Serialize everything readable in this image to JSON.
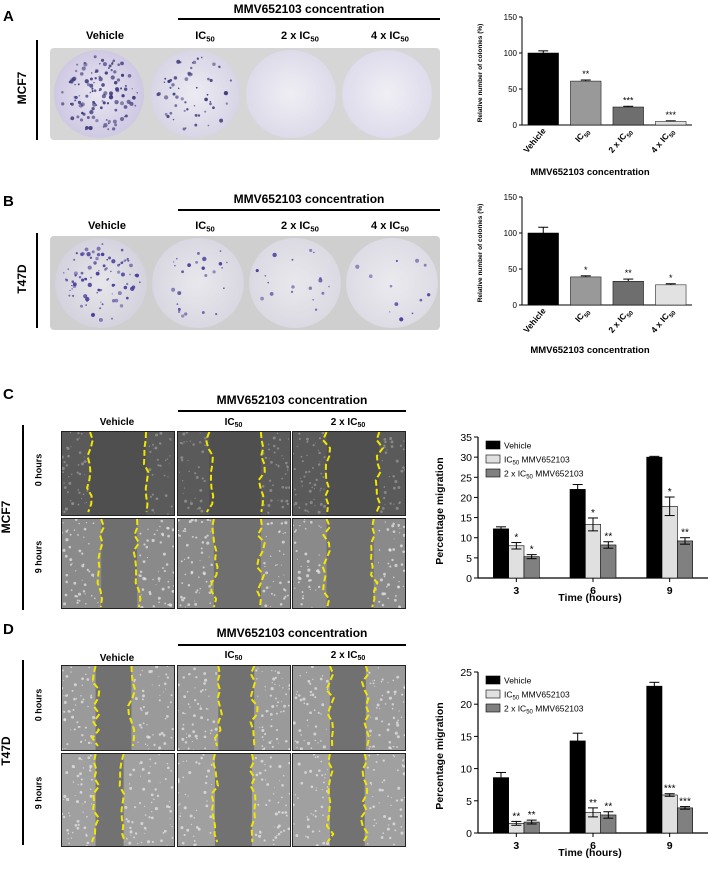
{
  "figure": {
    "concentration_header": "MMV652103  concentration",
    "panels": [
      {
        "letter": "A",
        "cell_line": "MCF7",
        "columns": [
          {
            "main": "Vehicle",
            "sub": ""
          },
          {
            "main": "IC",
            "sub": "50"
          },
          {
            "main": "2 x IC",
            "sub": "50"
          },
          {
            "main": "4 x IC",
            "sub": "50"
          }
        ]
      },
      {
        "letter": "B",
        "cell_line": "T47D",
        "columns": [
          {
            "main": "Vehicle",
            "sub": ""
          },
          {
            "main": "IC",
            "sub": "50"
          },
          {
            "main": "2 x IC",
            "sub": "50"
          },
          {
            "main": "4 x IC",
            "sub": "50"
          }
        ]
      },
      {
        "letter": "C",
        "cell_line": "MCF7",
        "columns": [
          {
            "main": "Vehicle",
            "sub": ""
          },
          {
            "main": "IC",
            "sub": "50"
          },
          {
            "main": "2 x IC",
            "sub": "50"
          }
        ],
        "rows": [
          "0 hours",
          "9 hours"
        ]
      },
      {
        "letter": "D",
        "cell_line": "T47D",
        "columns": [
          {
            "main": "Vehicle",
            "sub": ""
          },
          {
            "main": "IC",
            "sub": "50"
          },
          {
            "main": "2 x IC",
            "sub": "50"
          }
        ],
        "rows": [
          "0 hours",
          "9 hours"
        ]
      }
    ]
  },
  "chart_data": [
    {
      "type": "bar",
      "panel": "A",
      "categories": [
        "Vehicle",
        "IC50",
        "2 x IC50",
        "4 x IC50"
      ],
      "category_labels": [
        {
          "main": "Vehicle",
          "sub": ""
        },
        {
          "main": "IC",
          "sub": "50"
        },
        {
          "main": "2 x IC",
          "sub": "50"
        },
        {
          "main": "4 x IC",
          "sub": "50"
        }
      ],
      "values": [
        100,
        61,
        25,
        5
      ],
      "errors": [
        3,
        1.5,
        1,
        0.8
      ],
      "significance": [
        "",
        "**",
        "***",
        "***"
      ],
      "colors": [
        "#000000",
        "#999999",
        "#6e6e6e",
        "#e2e2e2"
      ],
      "ylabel": "Relative number of colonies (%)",
      "xlabel": "MMV652103 concentration",
      "ylim": [
        0,
        150
      ],
      "yticks": [
        0,
        50,
        100,
        150
      ]
    },
    {
      "type": "bar",
      "panel": "B",
      "categories": [
        "Vehicle",
        "IC50",
        "2 x IC50",
        "4 x IC50"
      ],
      "category_labels": [
        {
          "main": "Vehicle",
          "sub": ""
        },
        {
          "main": "IC",
          "sub": "50"
        },
        {
          "main": "2 x IC",
          "sub": "50"
        },
        {
          "main": "4 x IC",
          "sub": "50"
        }
      ],
      "values": [
        100,
        39,
        33,
        28
      ],
      "errors": [
        8,
        1.5,
        3,
        1.5
      ],
      "significance": [
        "",
        "*",
        "**",
        "*"
      ],
      "colors": [
        "#000000",
        "#999999",
        "#6e6e6e",
        "#e2e2e2"
      ],
      "ylabel": "Relative number of colonies (%)",
      "xlabel": "MMV652103 concentration",
      "ylim": [
        0,
        150
      ],
      "yticks": [
        0,
        50,
        100,
        150
      ]
    },
    {
      "type": "bar",
      "panel": "C",
      "categories": [
        "3",
        "6",
        "9"
      ],
      "series": [
        {
          "name": "Vehicle",
          "name_main": "Vehicle",
          "name_sub": "",
          "name_rest": "",
          "color": "#000000",
          "values": [
            12.2,
            22,
            30
          ],
          "errors": [
            0.5,
            1.2,
            0.2
          ],
          "significance": [
            "",
            "",
            ""
          ]
        },
        {
          "name": "IC50 MMV652103",
          "name_main": "IC",
          "name_sub": "50",
          "name_rest": " MMV652103",
          "color": "#e0e0e0",
          "values": [
            8,
            13.3,
            17.8
          ],
          "errors": [
            0.8,
            1.6,
            2.3
          ],
          "significance": [
            "*",
            "*",
            "*"
          ]
        },
        {
          "name": "2 x IC50 MMV652103",
          "name_main": "2 x IC",
          "name_sub": "50",
          "name_rest": " MMV652103",
          "color": "#808080",
          "values": [
            5.3,
            8.2,
            9.2
          ],
          "errors": [
            0.5,
            0.8,
            0.8
          ],
          "significance": [
            "*",
            "**",
            "**"
          ]
        }
      ],
      "ylabel": "Percentage migration",
      "xlabel": "Time (hours)",
      "ylim": [
        0,
        35
      ],
      "yticks": [
        0,
        5,
        10,
        15,
        20,
        25,
        30,
        35
      ],
      "legend": "top-left"
    },
    {
      "type": "bar",
      "panel": "D",
      "categories": [
        "3",
        "6",
        "9"
      ],
      "series": [
        {
          "name": "Vehicle",
          "name_main": "Vehicle",
          "name_sub": "",
          "name_rest": "",
          "color": "#000000",
          "values": [
            8.6,
            14.3,
            22.8
          ],
          "errors": [
            0.8,
            1.2,
            0.6
          ],
          "significance": [
            "",
            "",
            ""
          ]
        },
        {
          "name": "IC50 MMV652103",
          "name_main": "IC",
          "name_sub": "50",
          "name_rest": " MMV652103",
          "color": "#e0e0e0",
          "values": [
            1.5,
            3.2,
            5.9
          ],
          "errors": [
            0.3,
            0.7,
            0.2
          ],
          "significance": [
            "**",
            "**",
            "***"
          ]
        },
        {
          "name": "2 x IC50 MMV652103",
          "name_main": "2 x IC",
          "name_sub": "50",
          "name_rest": " MMV652103",
          "color": "#808080",
          "values": [
            1.7,
            2.8,
            3.9
          ],
          "errors": [
            0.3,
            0.5,
            0.2
          ],
          "significance": [
            "**",
            "**",
            "***"
          ]
        }
      ],
      "ylabel": "Percentage migration",
      "xlabel": "Time (hours)",
      "ylim": [
        0,
        25
      ],
      "yticks": [
        0,
        5,
        10,
        15,
        20,
        25
      ],
      "legend": "top-left"
    }
  ]
}
